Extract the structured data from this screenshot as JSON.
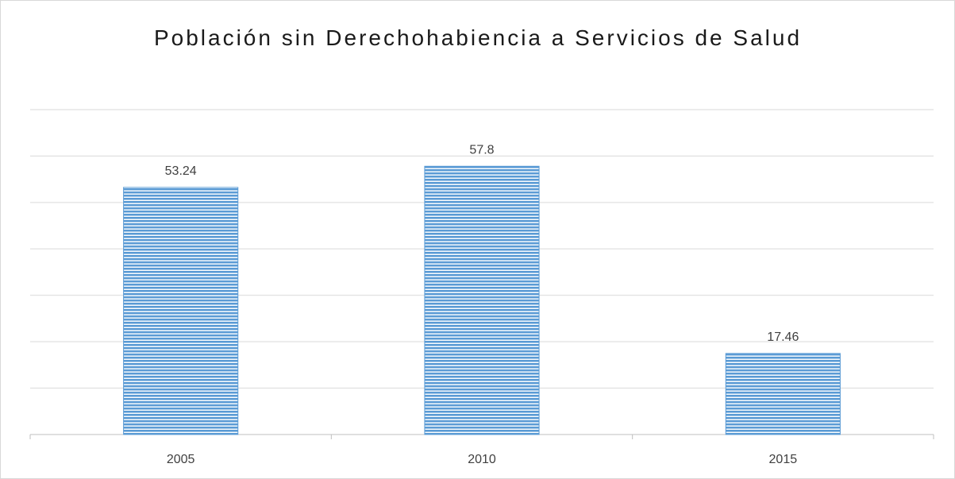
{
  "chart_data": {
    "type": "bar",
    "title": "Población sin Derechohabiencia a Servicios de Salud",
    "categories": [
      "2005",
      "2010",
      "2015"
    ],
    "values": [
      53.24,
      57.8,
      17.46
    ],
    "color": "#5b9bd5",
    "ylim": [
      0,
      70
    ],
    "yticks": [
      0,
      10,
      20,
      30,
      40,
      50,
      60,
      70
    ],
    "grid": true
  }
}
